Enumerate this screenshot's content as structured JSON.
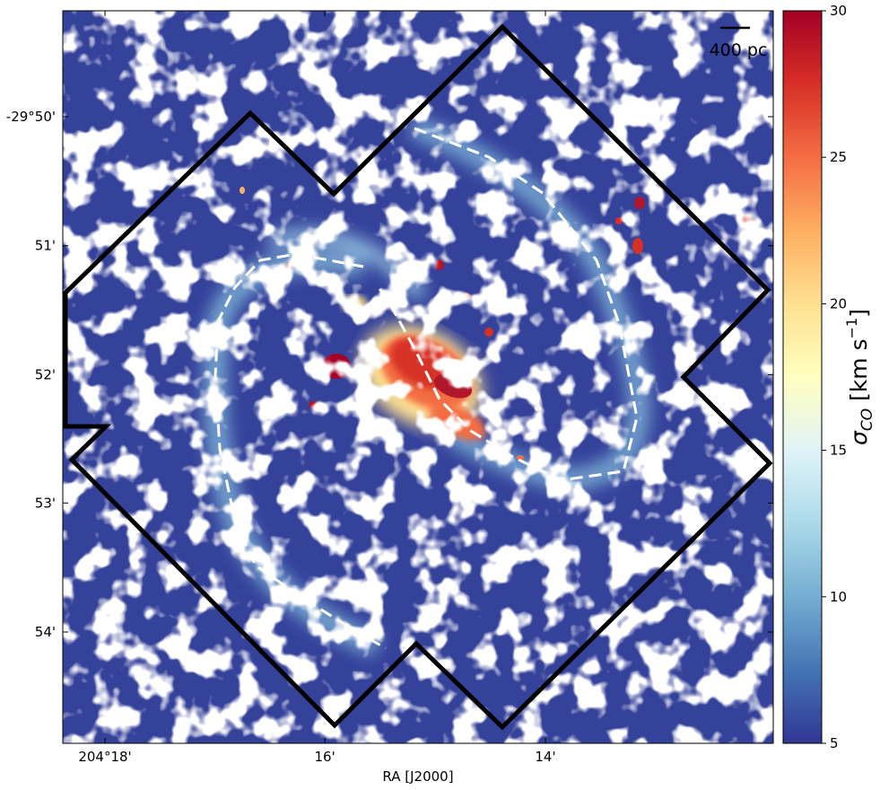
{
  "chart_data": {
    "type": "heatmap",
    "title": "",
    "xlabel": "RA [J2000]",
    "ylabel": "",
    "x_ticks": [
      {
        "value": 204.3,
        "label": "204°18'"
      },
      {
        "value": 204.2667,
        "label": "16'"
      },
      {
        "value": 204.2333,
        "label": "14'"
      }
    ],
    "y_ticks": [
      {
        "value": -29.8333,
        "label": "-29°50'"
      },
      {
        "value": -29.85,
        "label": "51'"
      },
      {
        "value": -29.8667,
        "label": "52'"
      },
      {
        "value": -29.8833,
        "label": "53'"
      },
      {
        "value": -29.9,
        "label": "54'"
      }
    ],
    "colorbar": {
      "label": "σ_CO [km s⁻¹]",
      "label_main": "σ",
      "label_sub": "CO",
      "label_unit": " [km s",
      "label_exp": "−1",
      "label_close": "]",
      "range": [
        5,
        30
      ],
      "ticks": [
        {
          "value": 5,
          "label": "5"
        },
        {
          "value": 10,
          "label": "10"
        },
        {
          "value": 15,
          "label": "15"
        },
        {
          "value": 20,
          "label": "20"
        },
        {
          "value": 25,
          "label": "25"
        },
        {
          "value": 30,
          "label": "30"
        }
      ],
      "colormap": "RdYlBu_r",
      "colors": [
        "#313695",
        "#4575b4",
        "#74add1",
        "#abd9e9",
        "#e0f3f8",
        "#ffffbf",
        "#fee090",
        "#fdae61",
        "#f46d43",
        "#d73027",
        "#a50026"
      ]
    },
    "scalebar": {
      "label": "400 pc"
    },
    "footprint_color": "#000000",
    "spiral_arm_color": "#ffffff",
    "background_fill": "#ffffff",
    "low_dispersion_color": "#35429a"
  }
}
